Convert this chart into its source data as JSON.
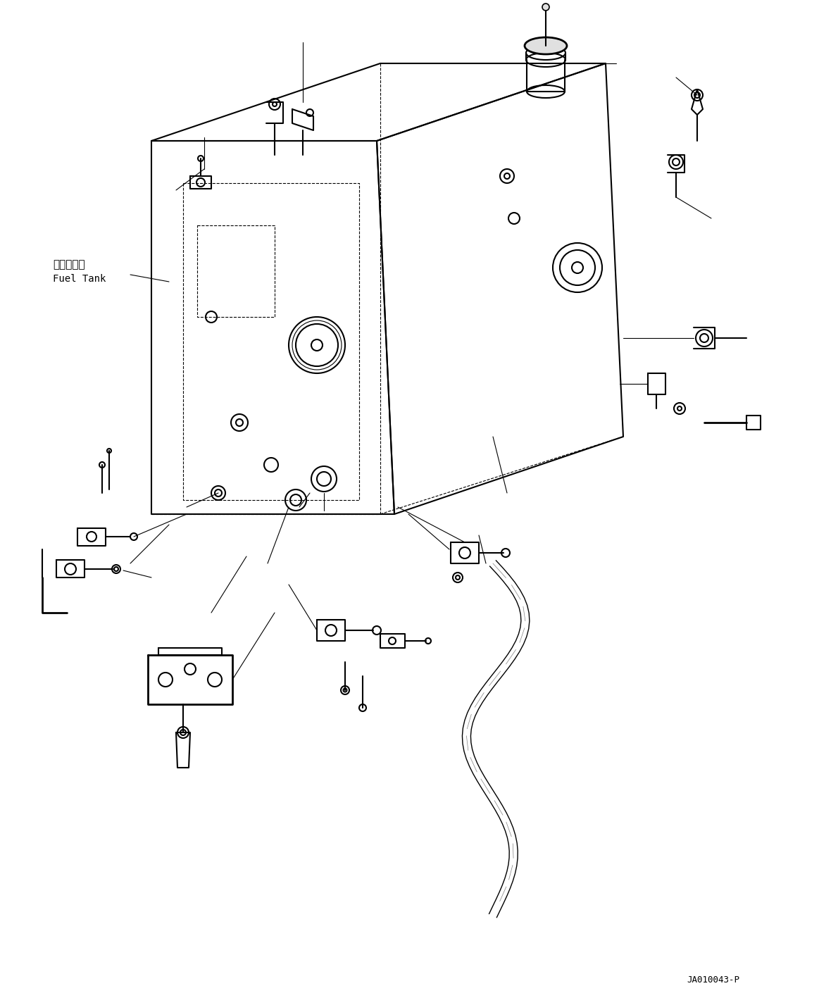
{
  "bg_color": "#ffffff",
  "line_color": "#000000",
  "text_color": "#000000",
  "label_fuel_tank_jp": "燃料タンク",
  "label_fuel_tank_en": "Fuel Tank",
  "code": "JA010043-P",
  "figsize": [
    11.63,
    14.27
  ],
  "dpi": 100
}
